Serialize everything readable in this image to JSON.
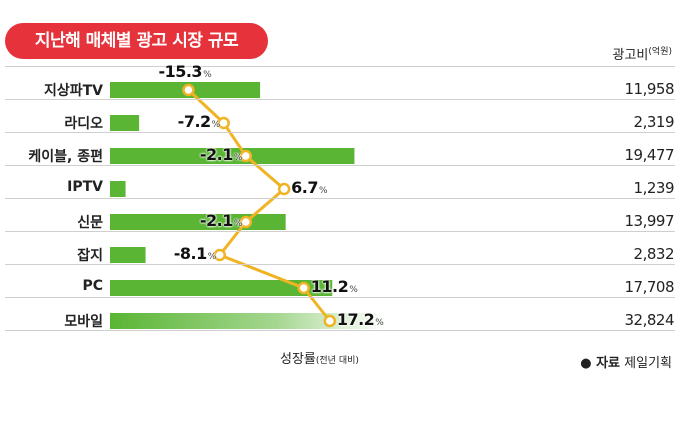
{
  "title": "지난해 매체별 광고 시장 규모",
  "unit_label": "광고비",
  "unit_sub": "(억원)",
  "growth_axis_label": "성장률",
  "growth_axis_sub": "(전년 대비)",
  "source_prefix": "● 자료",
  "source_name": "제일기획",
  "colors": {
    "title_bg": "#e5323b",
    "bar": "#5ab534",
    "line": "#f0b323"
  },
  "chart_data": {
    "type": "bar",
    "title": "지난해 매체별 광고 시장 규모",
    "categories": [
      "지상파TV",
      "라디오",
      "케이블, 종편",
      "IPTV",
      "신문",
      "잡지",
      "PC",
      "모바일"
    ],
    "series": [
      {
        "name": "광고비",
        "unit": "억원",
        "values": [
          11958,
          2319,
          19477,
          1239,
          13997,
          2832,
          17708,
          32824
        ]
      },
      {
        "name": "성장률",
        "unit": "%",
        "type": "line",
        "values": [
          -15.3,
          -7.2,
          -2.1,
          6.7,
          -2.1,
          -8.1,
          11.2,
          17.2
        ]
      }
    ],
    "value_labels": [
      "11,958",
      "2,319",
      "19,477",
      "1,239",
      "13,997",
      "2,832",
      "17,708",
      "32,824"
    ],
    "growth_labels": [
      "-15.3",
      "-7.2",
      "-2.1",
      "6.7",
      "-2.1",
      "-8.1",
      "11.2",
      "17.2"
    ],
    "growth_suffix": "%"
  }
}
